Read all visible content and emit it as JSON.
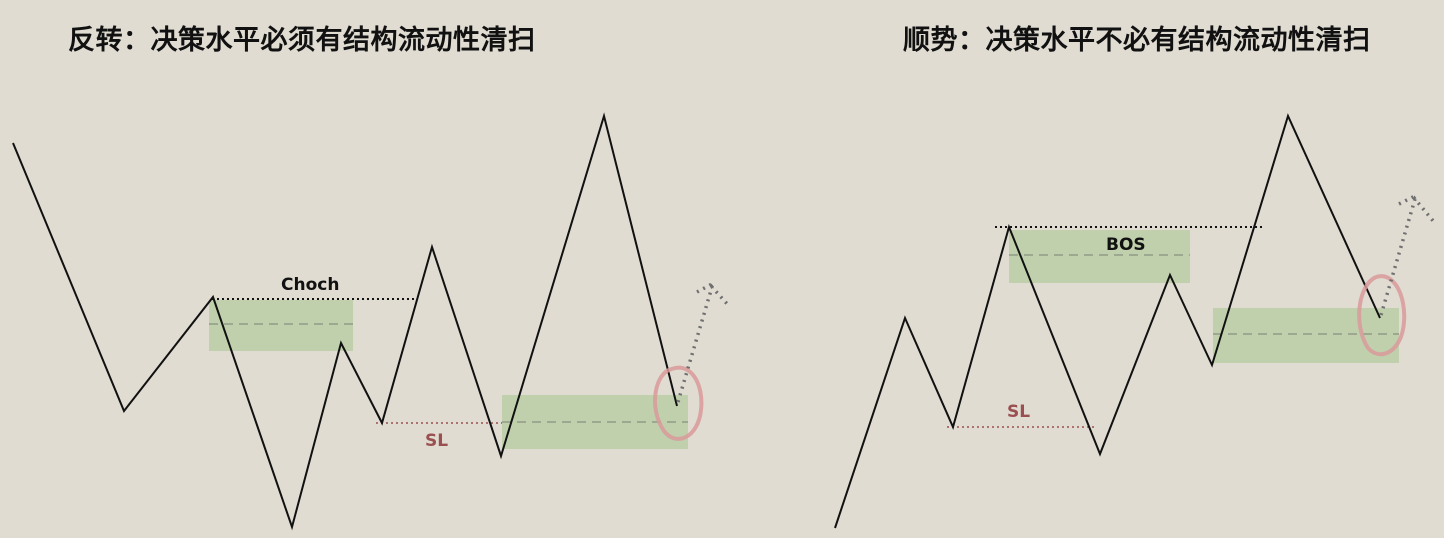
{
  "left_panel": {
    "title": "反转：决策水平必须有结构流动性清扫",
    "structure_label": "Choch",
    "stop_label": "SL"
  },
  "right_panel": {
    "title": "顺势：决策水平不必有结构流动性清扫",
    "structure_label": "BOS",
    "stop_label": "SL"
  },
  "colors": {
    "background": "#e0dcd2",
    "price_line": "#111111",
    "zone_fill": "#b5cca0",
    "zone_midline": "#8f9a86",
    "stop_loss": "#9a4f50",
    "sweep_circle": "#d99a9a",
    "projection": "#6f6f6f"
  }
}
